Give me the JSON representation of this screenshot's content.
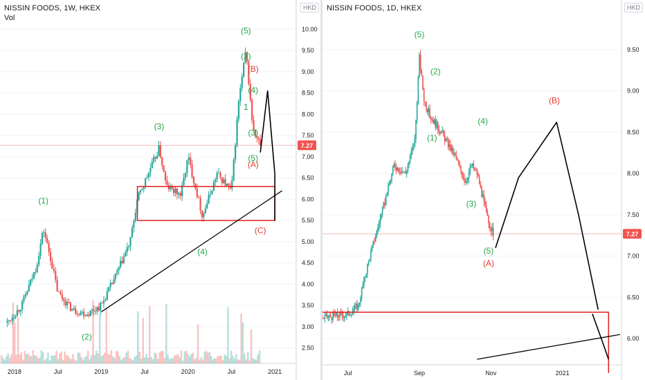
{
  "panels": [
    {
      "title": "NISSIN FOODS, 1W, HKEX",
      "subtitle": "Vol",
      "currency": "HKD",
      "last_price": "7.27",
      "x_ticks": [
        "2018",
        "Jul",
        "2019",
        "Jul",
        "2020",
        "Jul",
        "2021"
      ],
      "y_ticks": [
        "2.50",
        "3.00",
        "3.50",
        "4.00",
        "4.50",
        "5.00",
        "5.50",
        "6.00",
        "6.50",
        "7.00",
        "7.50",
        "8.00",
        "8.50",
        "9.00",
        "9.50",
        "10.00"
      ],
      "wave_labels": [
        "(1)",
        "(2)",
        "(3)",
        "(4)",
        "(5)",
        "(2)",
        "(B)",
        "(4)",
        "1",
        "(3)",
        "(5)",
        "(A)",
        "(C)"
      ],
      "colors": {
        "up": "#26a69a",
        "down": "#ef5350",
        "wave_green": "#22a645",
        "wave_red": "#e53935",
        "box": "#e31b1b"
      }
    },
    {
      "title": "NISSIN FOODS, 1D, HKEX",
      "currency": "HKD",
      "last_price": "7.27",
      "x_ticks": [
        "Jul",
        "Sep",
        "Nov",
        "2021"
      ],
      "y_ticks": [
        "6.00",
        "6.50",
        "7.00",
        "7.50",
        "8.00",
        "8.50",
        "9.00",
        "9.50"
      ],
      "wave_labels": [
        "(5)",
        "(2)",
        "(1)",
        "(4)",
        "(3)",
        "(5)",
        "(A)",
        "(B)"
      ]
    }
  ],
  "chart_data": [
    {
      "type": "candlestick",
      "title": "NISSIN FOODS, 1W, HKEX",
      "x_range": [
        "2017-11",
        "2021-03"
      ],
      "ylim": [
        2.3,
        10.2
      ],
      "series": [
        {
          "name": "Vol",
          "type": "bar"
        }
      ],
      "price_path": [
        [
          "2017-12",
          3.1
        ],
        [
          "2018-02",
          3.5
        ],
        [
          "2018-04",
          4.4
        ],
        [
          "2018-05",
          5.3
        ],
        [
          "2018-06",
          4.6
        ],
        [
          "2018-07",
          3.8
        ],
        [
          "2018-09",
          3.4
        ],
        [
          "2018-11",
          3.3
        ],
        [
          "2019-01",
          3.5
        ],
        [
          "2019-03",
          4.2
        ],
        [
          "2019-05",
          5.0
        ],
        [
          "2019-06",
          6.0
        ],
        [
          "2019-08",
          6.8
        ],
        [
          "2019-09",
          7.2
        ],
        [
          "2019-10",
          6.3
        ],
        [
          "2019-12",
          6.1
        ],
        [
          "2020-01",
          7.0
        ],
        [
          "2020-03",
          5.6
        ],
        [
          "2020-05",
          6.6
        ],
        [
          "2020-07",
          6.2
        ],
        [
          "2020-08",
          8.3
        ],
        [
          "2020-09",
          9.5
        ],
        [
          "2020-10",
          7.6
        ],
        [
          "2020-11",
          7.27
        ]
      ],
      "last_price": 7.27,
      "support_box": {
        "from": "2019-06",
        "to": "2021-01",
        "low": 5.5,
        "high": 6.3
      },
      "trendline": [
        [
          "2019-01",
          3.35
        ],
        [
          "2021-02",
          6.2
        ]
      ],
      "wave_points": [
        {
          "label": "(1)",
          "x": "2018-05",
          "y": 5.9,
          "color": "green"
        },
        {
          "label": "(2)",
          "x": "2018-11",
          "y": 2.7,
          "color": "green"
        },
        {
          "label": "(3)",
          "x": "2019-09",
          "y": 7.65,
          "color": "green"
        },
        {
          "label": "(4)",
          "x": "2020-03",
          "y": 4.7,
          "color": "green"
        },
        {
          "label": "(5)",
          "x": "2020-09",
          "y": 9.9,
          "color": "green"
        },
        {
          "label": "(2)",
          "x": "2020-09",
          "y": 9.3,
          "color": "green"
        },
        {
          "label": "(B)",
          "x": "2020-10",
          "y": 9.0,
          "color": "red"
        },
        {
          "label": "(4)",
          "x": "2020-10",
          "y": 8.5,
          "color": "green"
        },
        {
          "label": "1",
          "x": "2020-09",
          "y": 8.1,
          "color": "green"
        },
        {
          "label": "(3)",
          "x": "2020-10",
          "y": 7.5,
          "color": "green"
        },
        {
          "label": "(5)",
          "x": "2020-10",
          "y": 6.9,
          "color": "green"
        },
        {
          "label": "(A)",
          "x": "2020-10",
          "y": 6.75,
          "color": "red"
        },
        {
          "label": "(C)",
          "x": "2020-11",
          "y": 5.2,
          "color": "red"
        }
      ],
      "projection": [
        [
          "2020-11",
          7.1
        ],
        [
          "2020-12",
          8.55
        ],
        [
          "2021-01",
          6.6
        ],
        [
          "2021-01",
          5.5
        ]
      ]
    },
    {
      "type": "candlestick",
      "title": "NISSIN FOODS, 1D, HKEX",
      "x_range": [
        "2020-06-10",
        "2021-02-20"
      ],
      "ylim": [
        5.75,
        9.85
      ],
      "price_path": [
        [
          "2020-06-10",
          6.25
        ],
        [
          "2020-07-01",
          6.3
        ],
        [
          "2020-07-10",
          6.4
        ],
        [
          "2020-07-20",
          7.0
        ],
        [
          "2020-08-01",
          7.6
        ],
        [
          "2020-08-10",
          8.1
        ],
        [
          "2020-08-20",
          8.0
        ],
        [
          "2020-08-28",
          8.4
        ],
        [
          "2020-09-01",
          9.4
        ],
        [
          "2020-09-05",
          8.9
        ],
        [
          "2020-09-10",
          8.7
        ],
        [
          "2020-09-20",
          8.5
        ],
        [
          "2020-10-01",
          8.2
        ],
        [
          "2020-10-10",
          7.9
        ],
        [
          "2020-10-15",
          8.1
        ],
        [
          "2020-10-20",
          8.0
        ],
        [
          "2020-10-30",
          7.4
        ],
        [
          "2020-11-03",
          7.27
        ]
      ],
      "last_price": 7.27,
      "support_box": {
        "from": "2020-06-10",
        "to": "2021-02-10",
        "top": 6.32
      },
      "trendline": [
        [
          "2020-10-20",
          5.75
        ],
        [
          "2021-02-20",
          6.05
        ]
      ],
      "wave_points": [
        {
          "label": "(5)",
          "x": "2020-09-01",
          "y": 9.65,
          "color": "green"
        },
        {
          "label": "(2)",
          "x": "2020-09-15",
          "y": 9.2,
          "color": "green"
        },
        {
          "label": "(1)",
          "x": "2020-09-12",
          "y": 8.4,
          "color": "green"
        },
        {
          "label": "(4)",
          "x": "2020-10-25",
          "y": 8.6,
          "color": "green"
        },
        {
          "label": "(3)",
          "x": "2020-10-15",
          "y": 7.6,
          "color": "green"
        },
        {
          "label": "(5)",
          "x": "2020-10-30",
          "y": 7.03,
          "color": "green"
        },
        {
          "label": "(A)",
          "x": "2020-10-30",
          "y": 6.88,
          "color": "red"
        },
        {
          "label": "(B)",
          "x": "2020-12-25",
          "y": 8.85,
          "color": "red"
        }
      ],
      "projection": [
        [
          "2020-11-05",
          7.1
        ],
        [
          "2020-11-25",
          7.95
        ],
        [
          "2020-12-27",
          8.62
        ],
        [
          "2021-01-15",
          7.5
        ],
        [
          "2021-02-01",
          6.35
        ]
      ],
      "projection_2": [
        [
          "2021-01-27",
          6.3
        ],
        [
          "2021-02-05",
          5.95
        ],
        [
          "2021-02-10",
          5.75
        ]
      ]
    }
  ]
}
